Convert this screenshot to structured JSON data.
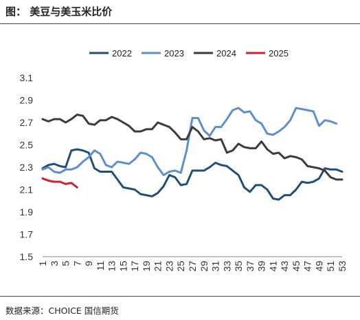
{
  "header": {
    "title": "图：  美豆与美玉米比价",
    "corner_mark": "图"
  },
  "footer": {
    "source": "数据来源：CHOICE 国信期货",
    "corner_mark": "数"
  },
  "chart_data": {
    "type": "line",
    "ylim": [
      1.5,
      3.1
    ],
    "yticks": [
      "3.1",
      "2.9",
      "2.7",
      "2.5",
      "2.3",
      "2.1",
      "1.9",
      "1.7",
      "1.5"
    ],
    "xticks": [
      "1",
      "3",
      "5",
      "7",
      "9",
      "11",
      "13",
      "15",
      "17",
      "19",
      "21",
      "23",
      "25",
      "27",
      "29",
      "31",
      "33",
      "35",
      "37",
      "39",
      "41",
      "43",
      "45",
      "47",
      "49",
      "51",
      "53"
    ],
    "xlim": [
      1,
      53
    ],
    "grid": false,
    "legend_position": "top",
    "series": [
      {
        "name": "2022",
        "color": "#1f4e79",
        "x": [
          1,
          2,
          3,
          4,
          5,
          6,
          7,
          8,
          9,
          10,
          11,
          12,
          13,
          14,
          15,
          16,
          17,
          18,
          19,
          20,
          21,
          22,
          23,
          24,
          25,
          26,
          27,
          28,
          29,
          30,
          31,
          32,
          33,
          34,
          35,
          36,
          37,
          38,
          39,
          40,
          41,
          42,
          43,
          44,
          45,
          46,
          47,
          48,
          49,
          50,
          51,
          52,
          53
        ],
        "values": [
          2.29,
          2.32,
          2.33,
          2.31,
          2.3,
          2.45,
          2.46,
          2.45,
          2.43,
          2.29,
          2.26,
          2.26,
          2.26,
          2.19,
          2.12,
          2.11,
          2.1,
          2.06,
          2.05,
          2.04,
          2.07,
          2.13,
          2.23,
          2.21,
          2.14,
          2.15,
          2.27,
          2.27,
          2.27,
          2.3,
          2.34,
          2.32,
          2.31,
          2.27,
          2.23,
          2.12,
          2.08,
          2.14,
          2.14,
          2.1,
          2.02,
          2.01,
          2.05,
          2.05,
          2.1,
          2.17,
          2.16,
          2.17,
          2.2,
          2.29,
          2.28,
          2.28,
          2.26
        ]
      },
      {
        "name": "2023",
        "color": "#5b8fd0",
        "x": [
          1,
          2,
          3,
          4,
          5,
          6,
          7,
          8,
          9,
          10,
          11,
          12,
          13,
          14,
          15,
          16,
          17,
          18,
          19,
          20,
          21,
          22,
          23,
          24,
          25,
          26,
          27,
          28,
          29,
          30,
          31,
          32,
          33,
          34,
          35,
          36,
          37,
          38,
          39,
          40,
          41,
          42,
          43,
          44,
          45,
          46,
          47,
          48,
          49,
          50,
          51,
          52
        ],
        "values": [
          2.28,
          2.3,
          2.26,
          2.25,
          2.28,
          2.28,
          2.3,
          2.35,
          2.39,
          2.45,
          2.42,
          2.32,
          2.3,
          2.35,
          2.34,
          2.33,
          2.37,
          2.43,
          2.42,
          2.39,
          2.3,
          2.23,
          2.26,
          2.27,
          2.25,
          2.45,
          2.74,
          2.74,
          2.63,
          2.58,
          2.66,
          2.66,
          2.73,
          2.81,
          2.83,
          2.79,
          2.8,
          2.72,
          2.69,
          2.6,
          2.59,
          2.62,
          2.66,
          2.72,
          2.83,
          2.82,
          2.81,
          2.8,
          2.67,
          2.72,
          2.71,
          2.69
        ]
      },
      {
        "name": "2024",
        "color": "#3b3b3b",
        "x": [
          1,
          2,
          3,
          4,
          5,
          6,
          7,
          8,
          9,
          10,
          11,
          12,
          13,
          14,
          15,
          16,
          17,
          18,
          19,
          20,
          21,
          22,
          23,
          24,
          25,
          26,
          27,
          28,
          29,
          30,
          31,
          32,
          33,
          34,
          35,
          36,
          37,
          38,
          39,
          40,
          41,
          42,
          43,
          44,
          45,
          46,
          47,
          48,
          49,
          50,
          51,
          52,
          53
        ],
        "values": [
          2.73,
          2.71,
          2.73,
          2.73,
          2.7,
          2.73,
          2.77,
          2.76,
          2.69,
          2.68,
          2.72,
          2.72,
          2.75,
          2.73,
          2.7,
          2.67,
          2.62,
          2.62,
          2.64,
          2.64,
          2.7,
          2.68,
          2.66,
          2.61,
          2.55,
          2.55,
          2.66,
          2.62,
          2.55,
          2.56,
          2.54,
          2.55,
          2.43,
          2.45,
          2.51,
          2.48,
          2.47,
          2.47,
          2.53,
          2.46,
          2.42,
          2.43,
          2.38,
          2.4,
          2.39,
          2.37,
          2.31,
          2.3,
          2.29,
          2.27,
          2.21,
          2.19,
          2.19
        ]
      },
      {
        "name": "2025",
        "color": "#d0202e",
        "x": [
          1,
          2,
          3,
          4,
          5,
          6,
          7
        ],
        "values": [
          2.2,
          2.18,
          2.17,
          2.17,
          2.15,
          2.16,
          2.12
        ]
      }
    ]
  }
}
